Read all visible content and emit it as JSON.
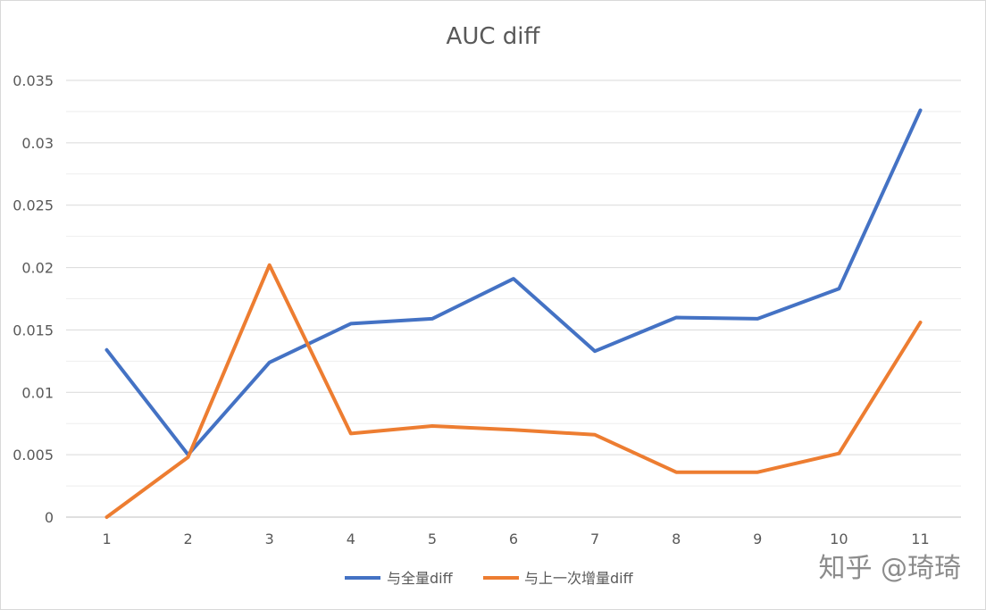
{
  "chart_data": {
    "type": "line",
    "title": "AUC diff",
    "xlabel": "",
    "ylabel": "",
    "categories": [
      "1",
      "2",
      "3",
      "4",
      "5",
      "6",
      "7",
      "8",
      "9",
      "10",
      "11"
    ],
    "y_ticks": [
      "0",
      "0.005",
      "0.01",
      "0.015",
      "0.02",
      "0.025",
      "0.03",
      "0.035"
    ],
    "ylim": [
      0,
      0.035
    ],
    "grid": true,
    "legend_position": "bottom",
    "series": [
      {
        "name": "与全量diff",
        "color": "#4472C4",
        "values": [
          0.0134,
          0.005,
          0.0124,
          0.0155,
          0.0159,
          0.0191,
          0.0133,
          0.016,
          0.0159,
          0.0183,
          0.0326
        ]
      },
      {
        "name": "与上一次增量diff",
        "color": "#ED7D31",
        "values": [
          0.0,
          0.0048,
          0.0202,
          0.0067,
          0.0073,
          0.007,
          0.0066,
          0.0036,
          0.0036,
          0.0051,
          0.0156
        ]
      }
    ]
  },
  "watermark": "知乎 @琦琦"
}
